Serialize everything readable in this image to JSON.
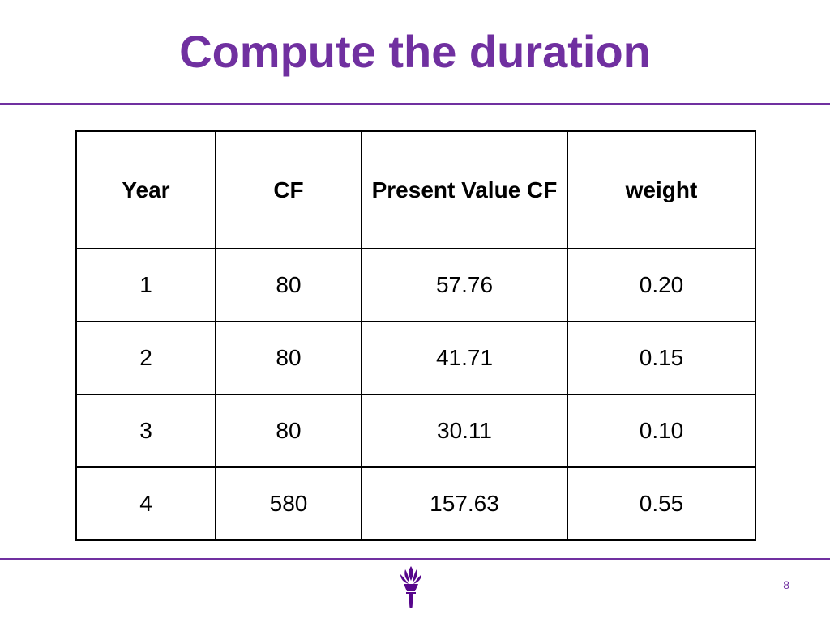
{
  "slide": {
    "title": "Compute the duration",
    "page_number": "8",
    "accent_color": "#7030a0",
    "logo_icon": "torch-icon"
  },
  "table": {
    "headers": [
      "Year",
      "CF",
      "Present Value CF",
      "weight"
    ],
    "rows": [
      [
        "1",
        "80",
        "57.76",
        "0.20"
      ],
      [
        "2",
        "80",
        "41.71",
        "0.15"
      ],
      [
        "3",
        "80",
        "30.11",
        "0.10"
      ],
      [
        "4",
        "580",
        "157.63",
        "0.55"
      ]
    ]
  }
}
